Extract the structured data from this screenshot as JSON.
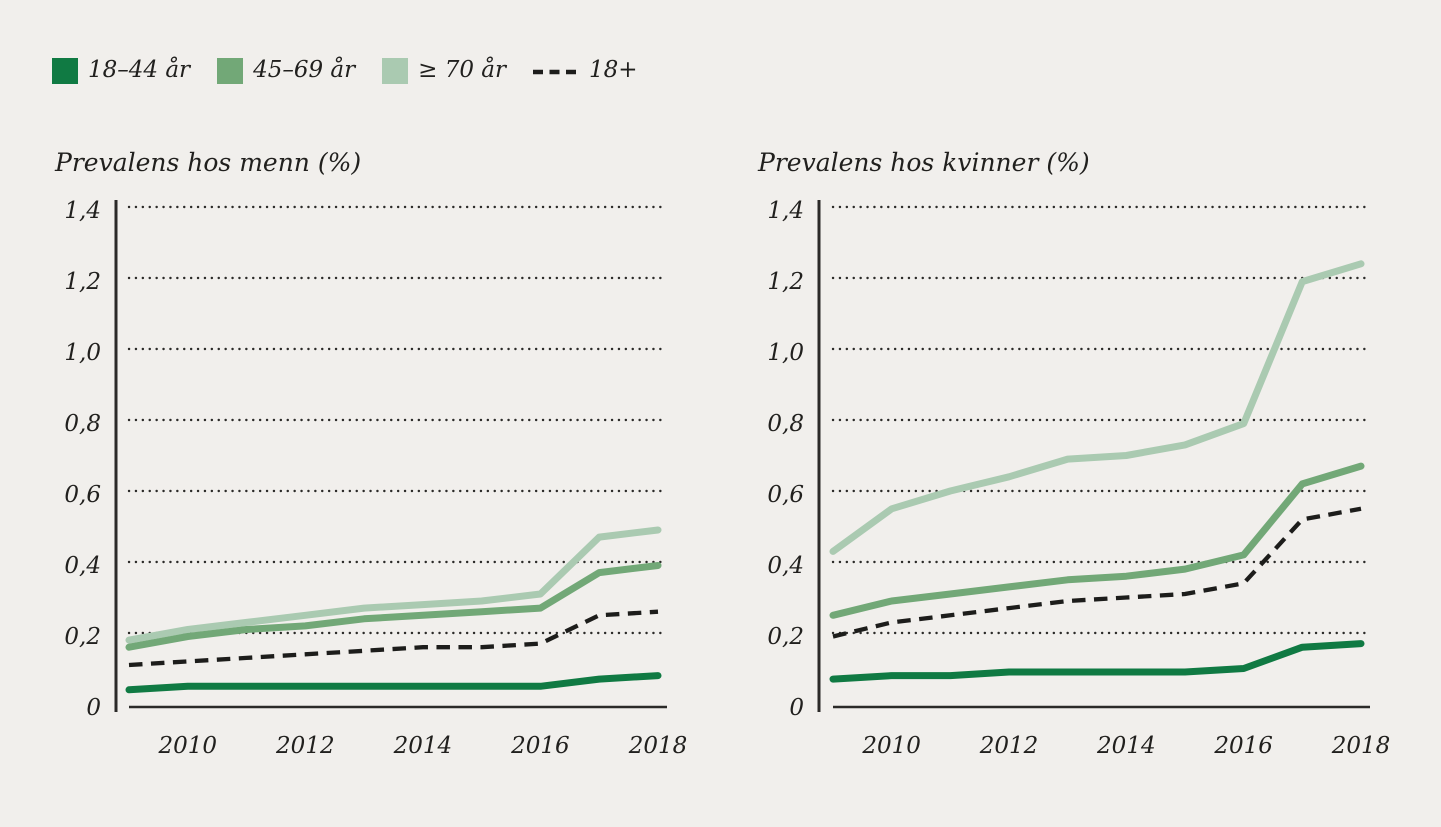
{
  "page": {
    "background_color": "#f1efec",
    "text_color": "#21201e",
    "axis_color": "#2b2a28"
  },
  "legend": {
    "items": [
      {
        "label": "18–44 år",
        "swatch": "square",
        "color": "#107a43"
      },
      {
        "label": "45–69 år",
        "swatch": "square",
        "color": "#72a877"
      },
      {
        "label": "≥ 70 år",
        "swatch": "square",
        "color": "#aacab1"
      },
      {
        "label": "18+",
        "swatch": "dashed-line",
        "color": "#1d1d1b"
      }
    ]
  },
  "chart_data": [
    {
      "type": "line",
      "title": "Prevalens hos menn (%)",
      "x": [
        2009,
        2010,
        2011,
        2012,
        2013,
        2014,
        2015,
        2016,
        2017,
        2018
      ],
      "xticks": [
        "2010",
        "2012",
        "2014",
        "2016",
        "2018"
      ],
      "yticks": [
        {
          "label": "1,4",
          "value": 1.4
        },
        {
          "label": "1,2",
          "value": 1.2
        },
        {
          "label": "1,0",
          "value": 1.0
        },
        {
          "label": "0,8",
          "value": 0.8
        },
        {
          "label": "0,6",
          "value": 0.6
        },
        {
          "label": "0,4",
          "value": 0.4
        },
        {
          "label": "0,2",
          "value": 0.2
        },
        {
          "label": "0",
          "value": 0
        }
      ],
      "ylim": [
        0,
        1.4
      ],
      "grid": "dotted-horizontal",
      "legend_position": "top-left-shared",
      "series": [
        {
          "name": "18–44 år",
          "color": "#107a43",
          "style": "solid",
          "values": [
            0.04,
            0.05,
            0.05,
            0.05,
            0.05,
            0.05,
            0.05,
            0.05,
            0.07,
            0.08
          ]
        },
        {
          "name": "45–69 år",
          "color": "#72a877",
          "style": "solid",
          "values": [
            0.16,
            0.19,
            0.21,
            0.22,
            0.24,
            0.25,
            0.26,
            0.27,
            0.37,
            0.39
          ]
        },
        {
          "name": "≥ 70 år",
          "color": "#aacab1",
          "style": "solid",
          "values": [
            0.18,
            0.21,
            0.23,
            0.25,
            0.27,
            0.28,
            0.29,
            0.31,
            0.47,
            0.49
          ]
        },
        {
          "name": "18+",
          "color": "#1d1d1b",
          "style": "dashed",
          "values": [
            0.11,
            0.12,
            0.13,
            0.14,
            0.15,
            0.16,
            0.16,
            0.17,
            0.25,
            0.26
          ]
        }
      ]
    },
    {
      "type": "line",
      "title": "Prevalens hos kvinner (%)",
      "x": [
        2009,
        2010,
        2011,
        2012,
        2013,
        2014,
        2015,
        2016,
        2017,
        2018
      ],
      "xticks": [
        "2010",
        "2012",
        "2014",
        "2016",
        "2018"
      ],
      "yticks": [
        {
          "label": "1,4",
          "value": 1.4
        },
        {
          "label": "1,2",
          "value": 1.2
        },
        {
          "label": "1,0",
          "value": 1.0
        },
        {
          "label": "0,8",
          "value": 0.8
        },
        {
          "label": "0,6",
          "value": 0.6
        },
        {
          "label": "0,4",
          "value": 0.4
        },
        {
          "label": "0,2",
          "value": 0.2
        },
        {
          "label": "0",
          "value": 0
        }
      ],
      "ylim": [
        0,
        1.4
      ],
      "grid": "dotted-horizontal",
      "legend_position": "top-left-shared",
      "series": [
        {
          "name": "18–44 år",
          "color": "#107a43",
          "style": "solid",
          "values": [
            0.07,
            0.08,
            0.08,
            0.09,
            0.09,
            0.09,
            0.09,
            0.1,
            0.16,
            0.17
          ]
        },
        {
          "name": "45–69 år",
          "color": "#72a877",
          "style": "solid",
          "values": [
            0.25,
            0.29,
            0.31,
            0.33,
            0.35,
            0.36,
            0.38,
            0.42,
            0.62,
            0.67
          ]
        },
        {
          "name": "≥ 70 år",
          "color": "#aacab1",
          "style": "solid",
          "values": [
            0.43,
            0.55,
            0.6,
            0.64,
            0.69,
            0.7,
            0.73,
            0.79,
            1.19,
            1.24
          ]
        },
        {
          "name": "18+",
          "color": "#1d1d1b",
          "style": "dashed",
          "values": [
            0.19,
            0.23,
            0.25,
            0.27,
            0.29,
            0.3,
            0.31,
            0.34,
            0.52,
            0.55
          ]
        }
      ]
    }
  ]
}
